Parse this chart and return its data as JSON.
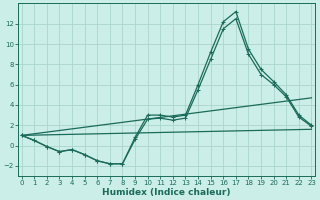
{
  "xlabel": "Humidex (Indice chaleur)",
  "bg_color": "#cceee8",
  "grid_color": "#aad4cc",
  "line_color": "#1a6b5a",
  "x_values": [
    0,
    1,
    2,
    3,
    4,
    5,
    6,
    7,
    8,
    9,
    10,
    11,
    12,
    13,
    14,
    15,
    16,
    17,
    18,
    19,
    20,
    21,
    22,
    23
  ],
  "line1_y": [
    1.0,
    0.5,
    -0.1,
    -0.6,
    -0.4,
    -0.9,
    -1.5,
    -1.8,
    -1.8,
    0.8,
    3.0,
    3.0,
    2.8,
    3.0,
    6.0,
    9.2,
    12.2,
    13.2,
    9.5,
    7.5,
    6.3,
    5.0,
    3.0,
    2.0
  ],
  "line2_y": [
    1.0,
    0.5,
    -0.1,
    -0.6,
    -0.4,
    -0.9,
    -1.5,
    -1.8,
    -1.8,
    0.6,
    2.6,
    2.7,
    2.5,
    2.7,
    5.5,
    8.5,
    11.5,
    12.5,
    9.0,
    7.0,
    6.0,
    4.8,
    2.8,
    1.9
  ],
  "line3_y_start": 1.0,
  "line3_y_end": 1.6,
  "line4_y_start": 1.0,
  "line4_y_end": 4.7,
  "ylim": [
    -3.0,
    14.0
  ],
  "yticks": [
    -2,
    0,
    2,
    4,
    6,
    8,
    10,
    12
  ],
  "xlim": [
    -0.3,
    23.3
  ],
  "xticks": [
    0,
    1,
    2,
    3,
    4,
    5,
    6,
    7,
    8,
    9,
    10,
    11,
    12,
    13,
    14,
    15,
    16,
    17,
    18,
    19,
    20,
    21,
    22,
    23
  ],
  "tick_fontsize": 5.0,
  "xlabel_fontsize": 6.5,
  "linewidth": 0.9,
  "marker_size": 3.5,
  "marker_lw": 0.8
}
